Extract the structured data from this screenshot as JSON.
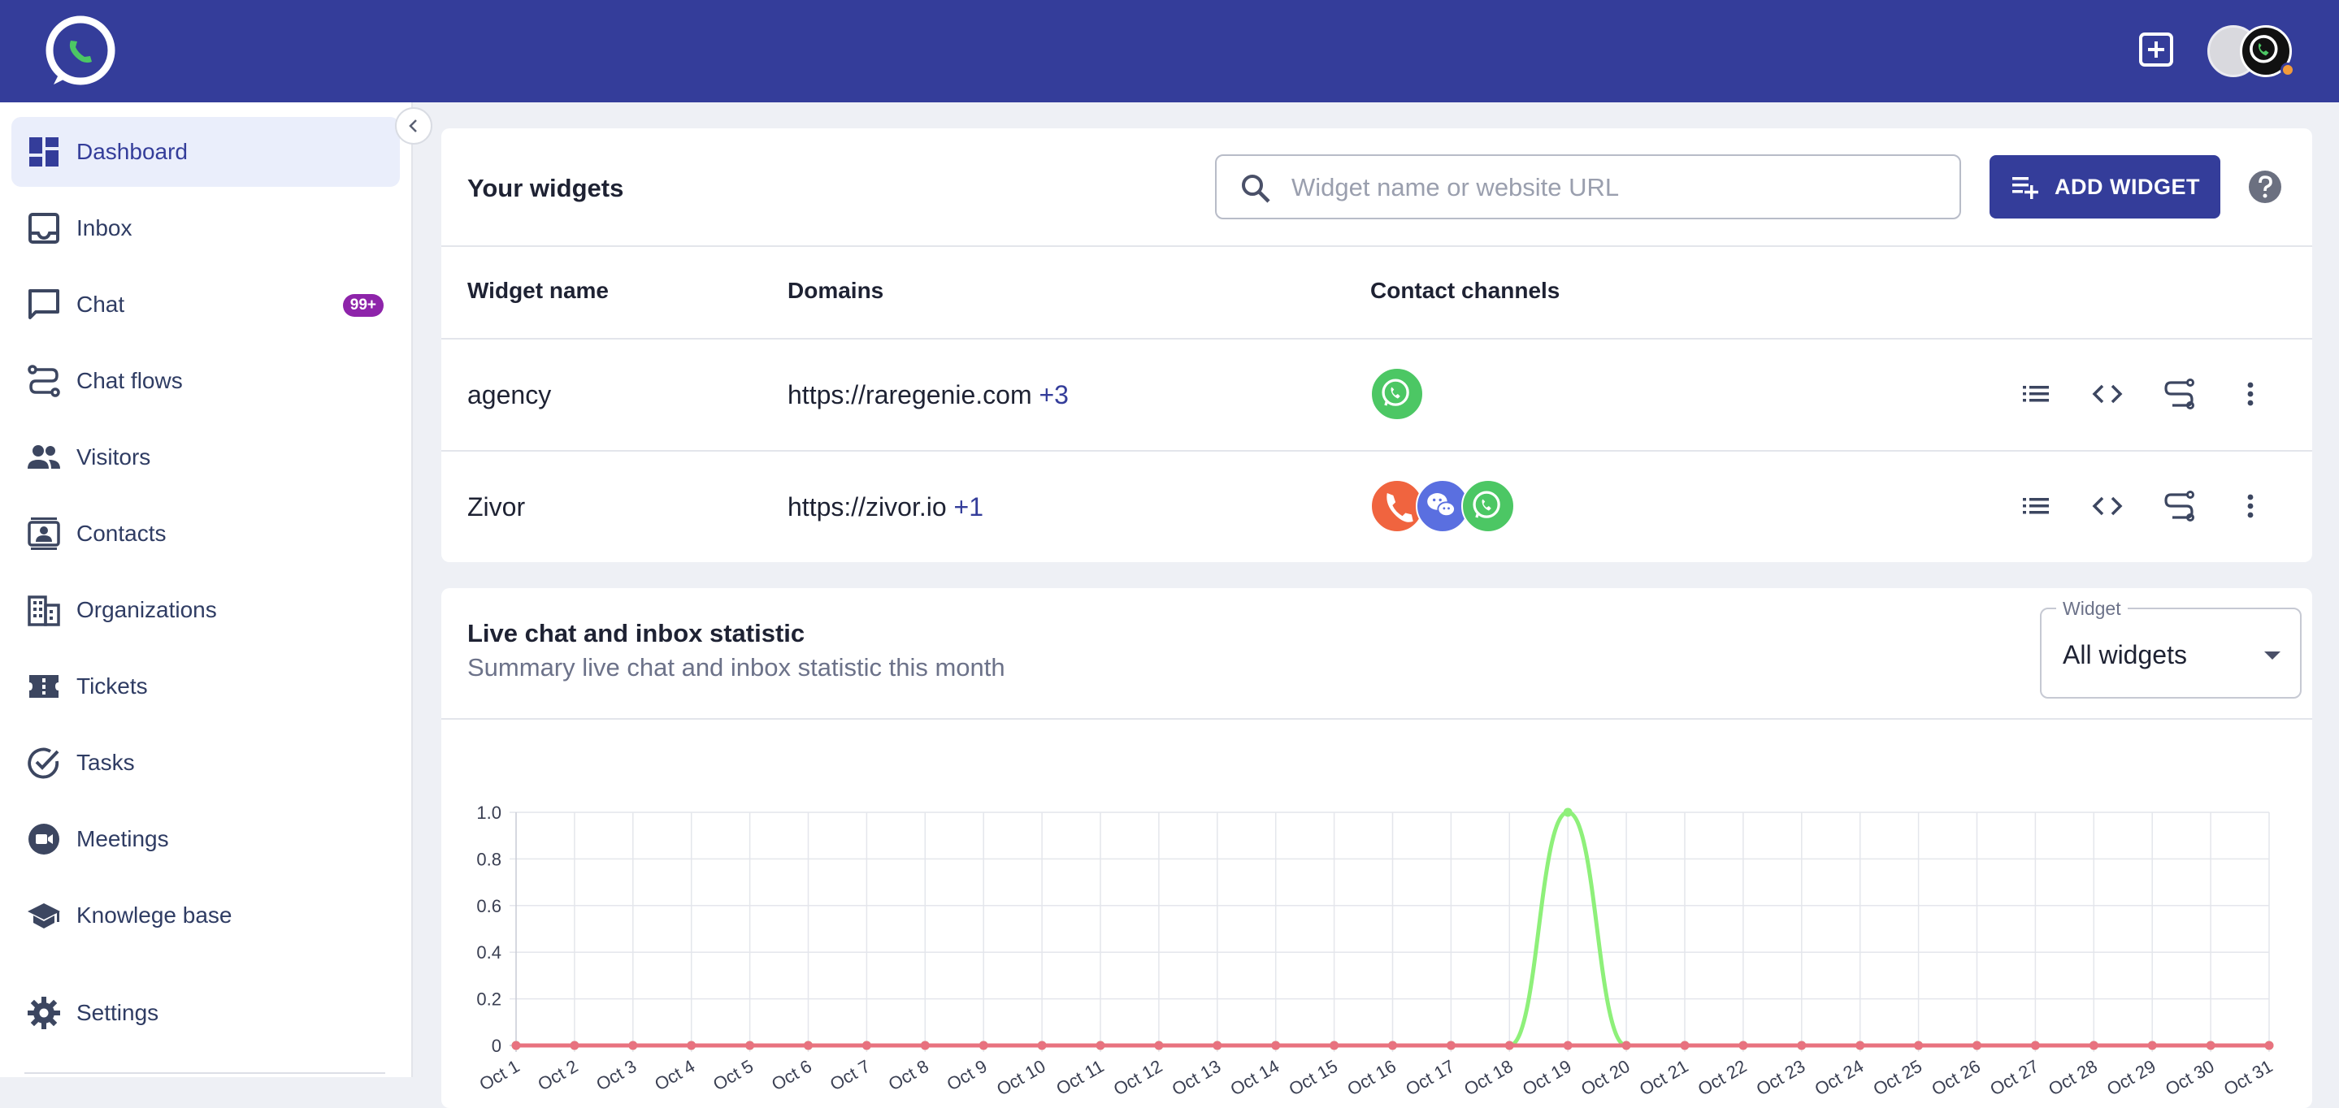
{
  "app": {
    "colors": {
      "topbar": "#343d9a",
      "accent": "#343d9a",
      "badge": "#8e24aa",
      "whatsapp": "#4cc764",
      "phone": "#f0643f",
      "wechat": "#5a6fe0"
    },
    "topbar": {
      "logo_icon": "chat-logo-icon",
      "add_icon": "add-box-icon",
      "avatar_icon": "avatar-icon"
    }
  },
  "sidebar": {
    "items": [
      {
        "label": "Dashboard",
        "icon": "dashboard-icon",
        "active": true
      },
      {
        "label": "Inbox",
        "icon": "inbox-icon"
      },
      {
        "label": "Chat",
        "icon": "chat-icon",
        "badge": "99+"
      },
      {
        "label": "Chat flows",
        "icon": "flow-icon"
      },
      {
        "label": "Visitors",
        "icon": "people-icon"
      },
      {
        "label": "Contacts",
        "icon": "contacts-icon"
      },
      {
        "label": "Organizations",
        "icon": "building-icon"
      },
      {
        "label": "Tickets",
        "icon": "ticket-icon"
      },
      {
        "label": "Tasks",
        "icon": "task-check-icon"
      },
      {
        "label": "Meetings",
        "icon": "video-camera-icon"
      },
      {
        "label": "Knowlege base",
        "icon": "school-icon"
      }
    ],
    "settings": {
      "label": "Settings",
      "icon": "gear-icon"
    }
  },
  "widgets": {
    "title": "Your widgets",
    "search": {
      "placeholder": "Widget name or website URL",
      "value": ""
    },
    "add_button": "ADD WIDGET",
    "columns": [
      "Widget name",
      "Domains",
      "Contact channels"
    ],
    "rows": [
      {
        "name": "agency",
        "domain": "https://raregenie.com",
        "extra": "+3",
        "channels": [
          "whatsapp"
        ]
      },
      {
        "name": "Zivor",
        "domain": "https://zivor.io",
        "extra": "+1",
        "channels": [
          "phone",
          "wechat",
          "whatsapp"
        ]
      }
    ]
  },
  "stats": {
    "title": "Live chat and inbox statistic",
    "subtitle": "Summary live chat and inbox statistic this month",
    "select": {
      "legend": "Widget",
      "value": "All widgets"
    }
  },
  "chart_data": {
    "type": "line",
    "x": [
      "Oct 1",
      "Oct 2",
      "Oct 3",
      "Oct 4",
      "Oct 5",
      "Oct 6",
      "Oct 7",
      "Oct 8",
      "Oct 9",
      "Oct 10",
      "Oct 11",
      "Oct 12",
      "Oct 13",
      "Oct 14",
      "Oct 15",
      "Oct 16",
      "Oct 17",
      "Oct 18",
      "Oct 19",
      "Oct 20",
      "Oct 21",
      "Oct 22",
      "Oct 23",
      "Oct 24",
      "Oct 25",
      "Oct 26",
      "Oct 27",
      "Oct 28",
      "Oct 29",
      "Oct 30",
      "Oct 31"
    ],
    "yticks": [
      "0",
      "0.2",
      "0.4",
      "0.6",
      "0.8",
      "1.0"
    ],
    "ylim": [
      0,
      1
    ],
    "grid": true,
    "series": [
      {
        "color": "#8ef07a",
        "values": [
          0,
          0,
          0,
          0,
          0,
          0,
          0,
          0,
          0,
          0,
          0,
          0,
          0,
          0,
          0,
          0,
          0,
          0,
          1,
          0,
          0,
          0,
          0,
          0,
          0,
          0,
          0,
          0,
          0,
          0,
          0
        ]
      },
      {
        "color": "#e8727f",
        "values": [
          0,
          0,
          0,
          0,
          0,
          0,
          0,
          0,
          0,
          0,
          0,
          0,
          0,
          0,
          0,
          0,
          0,
          0,
          0,
          0,
          0,
          0,
          0,
          0,
          0,
          0,
          0,
          0,
          0,
          0,
          0
        ]
      }
    ]
  }
}
